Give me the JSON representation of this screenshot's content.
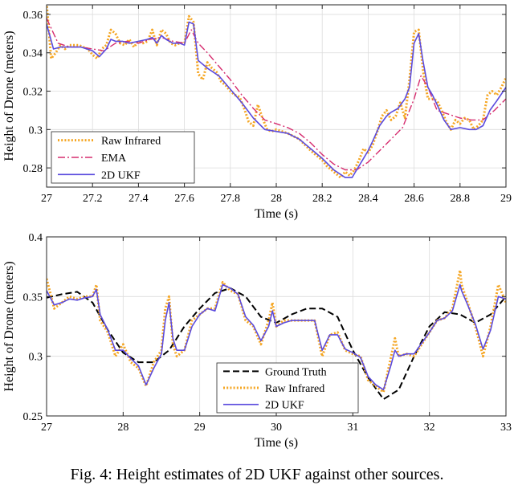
{
  "chart_data": [
    {
      "type": "line",
      "xlabel": "Time (s)",
      "ylabel": "Height of Drone (meters)",
      "xlim": [
        27,
        29
      ],
      "ylim": [
        0.27,
        0.365
      ],
      "xticks": [
        27,
        27.2,
        27.4,
        27.6,
        27.8,
        28,
        28.2,
        28.4,
        28.6,
        28.8,
        29
      ],
      "xtick_labels": [
        "27",
        "27.2",
        "27.4",
        "27.6",
        "27.8",
        "28",
        "28.2",
        "28.4",
        "28.6",
        "28.8",
        "29"
      ],
      "yticks": [
        0.28,
        0.3,
        0.32,
        0.34,
        0.36
      ],
      "ytick_labels": [
        "0.28",
        "0.3",
        "0.32",
        "0.34",
        "0.36"
      ],
      "grid": true,
      "legend_position": "bottom-left",
      "series": [
        {
          "name": "Raw Infrared",
          "color": "#F5A623",
          "style": "dotted",
          "x": [
            27.0,
            27.02,
            27.04,
            27.06,
            27.08,
            27.1,
            27.12,
            27.14,
            27.16,
            27.18,
            27.2,
            27.22,
            27.24,
            27.26,
            27.28,
            27.3,
            27.32,
            27.34,
            27.36,
            27.38,
            27.4,
            27.42,
            27.44,
            27.46,
            27.48,
            27.5,
            27.52,
            27.54,
            27.56,
            27.58,
            27.6,
            27.62,
            27.64,
            27.66,
            27.68,
            27.7,
            27.72,
            27.74,
            27.76,
            27.78,
            27.8,
            27.82,
            27.84,
            27.86,
            27.88,
            27.9,
            27.92,
            27.94,
            27.96,
            27.98,
            28.0,
            28.05,
            28.1,
            28.15,
            28.2,
            28.22,
            28.24,
            28.26,
            28.28,
            28.3,
            28.32,
            28.34,
            28.36,
            28.38,
            28.4,
            28.42,
            28.44,
            28.46,
            28.48,
            28.5,
            28.52,
            28.54,
            28.56,
            28.58,
            28.6,
            28.62,
            28.64,
            28.66,
            28.68,
            28.7,
            28.72,
            28.74,
            28.76,
            28.78,
            28.8,
            28.82,
            28.84,
            28.86,
            28.88,
            28.9,
            28.92,
            28.94,
            28.96,
            28.98,
            29.0
          ],
          "y": [
            0.366,
            0.337,
            0.34,
            0.344,
            0.342,
            0.344,
            0.344,
            0.344,
            0.343,
            0.342,
            0.339,
            0.337,
            0.342,
            0.344,
            0.352,
            0.35,
            0.345,
            0.344,
            0.347,
            0.343,
            0.346,
            0.345,
            0.346,
            0.352,
            0.344,
            0.352,
            0.35,
            0.345,
            0.344,
            0.345,
            0.345,
            0.359,
            0.356,
            0.329,
            0.326,
            0.335,
            0.332,
            0.33,
            0.325,
            0.323,
            0.32,
            0.318,
            0.317,
            0.311,
            0.304,
            0.302,
            0.313,
            0.306,
            0.3,
            0.299,
            0.3,
            0.298,
            0.295,
            0.289,
            0.284,
            0.281,
            0.279,
            0.277,
            0.275,
            0.278,
            0.276,
            0.279,
            0.284,
            0.29,
            0.288,
            0.292,
            0.299,
            0.307,
            0.31,
            0.305,
            0.307,
            0.314,
            0.306,
            0.326,
            0.351,
            0.352,
            0.33,
            0.316,
            0.316,
            0.315,
            0.31,
            0.304,
            0.3,
            0.305,
            0.303,
            0.306,
            0.305,
            0.3,
            0.302,
            0.305,
            0.318,
            0.32,
            0.318,
            0.322,
            0.327
          ]
        },
        {
          "name": "EMA",
          "color": "#D62D6F",
          "style": "dashdot",
          "x": [
            27.0,
            27.05,
            27.1,
            27.15,
            27.2,
            27.25,
            27.3,
            27.35,
            27.4,
            27.45,
            27.5,
            27.55,
            27.6,
            27.63,
            27.66,
            27.7,
            27.75,
            27.8,
            27.85,
            27.9,
            27.95,
            28.0,
            28.05,
            28.1,
            28.15,
            28.2,
            28.25,
            28.3,
            28.35,
            28.4,
            28.45,
            28.5,
            28.55,
            28.6,
            28.63,
            28.66,
            28.7,
            28.75,
            28.8,
            28.85,
            28.9,
            28.95,
            29.0
          ],
          "y": [
            0.358,
            0.345,
            0.343,
            0.343,
            0.342,
            0.341,
            0.345,
            0.346,
            0.345,
            0.347,
            0.348,
            0.346,
            0.345,
            0.352,
            0.345,
            0.34,
            0.333,
            0.326,
            0.318,
            0.311,
            0.305,
            0.303,
            0.301,
            0.298,
            0.293,
            0.287,
            0.282,
            0.279,
            0.279,
            0.283,
            0.289,
            0.295,
            0.301,
            0.316,
            0.328,
            0.322,
            0.31,
            0.308,
            0.306,
            0.305,
            0.305,
            0.31,
            0.316
          ]
        },
        {
          "name": "2D UKF",
          "color": "#5B4BDE",
          "style": "solid",
          "x": [
            27.0,
            27.03,
            27.06,
            27.1,
            27.15,
            27.2,
            27.23,
            27.26,
            27.28,
            27.3,
            27.33,
            27.36,
            27.4,
            27.44,
            27.46,
            27.48,
            27.5,
            27.52,
            27.55,
            27.58,
            27.6,
            27.62,
            27.64,
            27.66,
            27.7,
            27.75,
            27.8,
            27.85,
            27.9,
            27.95,
            28.0,
            28.05,
            28.1,
            28.15,
            28.2,
            28.25,
            28.3,
            28.33,
            28.35,
            28.38,
            28.4,
            28.42,
            28.45,
            28.48,
            28.5,
            28.53,
            28.56,
            28.58,
            28.6,
            28.62,
            28.64,
            28.66,
            28.68,
            28.7,
            28.73,
            28.76,
            28.8,
            28.84,
            28.87,
            28.9,
            28.93,
            28.96,
            29.0
          ],
          "y": [
            0.355,
            0.342,
            0.343,
            0.343,
            0.343,
            0.341,
            0.338,
            0.342,
            0.347,
            0.346,
            0.346,
            0.345,
            0.346,
            0.347,
            0.348,
            0.345,
            0.349,
            0.347,
            0.345,
            0.345,
            0.344,
            0.356,
            0.355,
            0.336,
            0.332,
            0.328,
            0.321,
            0.314,
            0.306,
            0.3,
            0.299,
            0.298,
            0.295,
            0.29,
            0.285,
            0.279,
            0.275,
            0.275,
            0.279,
            0.285,
            0.289,
            0.294,
            0.302,
            0.307,
            0.309,
            0.311,
            0.316,
            0.322,
            0.345,
            0.35,
            0.335,
            0.322,
            0.318,
            0.313,
            0.305,
            0.3,
            0.301,
            0.3,
            0.3,
            0.302,
            0.31,
            0.315,
            0.322
          ]
        }
      ]
    },
    {
      "type": "line",
      "xlabel": "Time (s)",
      "ylabel": "Height of Drone (meters)",
      "xlim": [
        27,
        33
      ],
      "ylim": [
        0.25,
        0.4
      ],
      "xticks": [
        27,
        28,
        29,
        30,
        31,
        32,
        33
      ],
      "xtick_labels": [
        "27",
        "28",
        "29",
        "30",
        "31",
        "32",
        "33"
      ],
      "yticks": [
        0.25,
        0.3,
        0.35,
        0.4
      ],
      "ytick_labels": [
        "0.25",
        "0.3",
        "0.35",
        "0.4"
      ],
      "grid": true,
      "legend_position": "bottom-center",
      "series": [
        {
          "name": "Ground Truth",
          "color": "#000000",
          "style": "dashed",
          "x": [
            27.0,
            27.2,
            27.4,
            27.6,
            27.8,
            28.0,
            28.2,
            28.4,
            28.6,
            28.8,
            29.0,
            29.2,
            29.4,
            29.6,
            29.8,
            30.0,
            30.2,
            30.4,
            30.6,
            30.8,
            31.0,
            31.2,
            31.4,
            31.6,
            31.8,
            32.0,
            32.2,
            32.4,
            32.6,
            32.8,
            33.0
          ],
          "y": [
            0.349,
            0.352,
            0.354,
            0.345,
            0.322,
            0.303,
            0.295,
            0.295,
            0.305,
            0.325,
            0.34,
            0.353,
            0.357,
            0.35,
            0.333,
            0.328,
            0.335,
            0.34,
            0.34,
            0.333,
            0.305,
            0.282,
            0.264,
            0.272,
            0.3,
            0.325,
            0.337,
            0.335,
            0.328,
            0.335,
            0.35
          ]
        },
        {
          "name": "Raw Infrared",
          "color": "#F5A623",
          "style": "dotted",
          "x": [
            27.0,
            27.1,
            27.2,
            27.3,
            27.4,
            27.5,
            27.6,
            27.65,
            27.7,
            27.8,
            27.9,
            28.0,
            28.1,
            28.2,
            28.3,
            28.4,
            28.5,
            28.55,
            28.6,
            28.65,
            28.7,
            28.8,
            28.9,
            29.0,
            29.1,
            29.2,
            29.3,
            29.4,
            29.5,
            29.6,
            29.7,
            29.8,
            29.9,
            29.95,
            30.0,
            30.1,
            30.2,
            30.3,
            30.4,
            30.5,
            30.6,
            30.7,
            30.8,
            30.9,
            31.0,
            31.1,
            31.2,
            31.3,
            31.4,
            31.5,
            31.55,
            31.6,
            31.7,
            31.8,
            31.9,
            32.0,
            32.1,
            32.2,
            32.3,
            32.4,
            32.42,
            32.5,
            32.6,
            32.7,
            32.8,
            32.9,
            33.0
          ],
          "y": [
            0.365,
            0.34,
            0.345,
            0.35,
            0.348,
            0.35,
            0.35,
            0.36,
            0.33,
            0.32,
            0.3,
            0.31,
            0.295,
            0.29,
            0.275,
            0.295,
            0.305,
            0.34,
            0.35,
            0.31,
            0.3,
            0.305,
            0.33,
            0.335,
            0.34,
            0.34,
            0.362,
            0.355,
            0.352,
            0.33,
            0.325,
            0.31,
            0.33,
            0.345,
            0.325,
            0.33,
            0.33,
            0.33,
            0.33,
            0.33,
            0.3,
            0.318,
            0.32,
            0.305,
            0.302,
            0.3,
            0.28,
            0.275,
            0.27,
            0.3,
            0.315,
            0.3,
            0.302,
            0.3,
            0.31,
            0.32,
            0.33,
            0.332,
            0.34,
            0.372,
            0.36,
            0.345,
            0.325,
            0.3,
            0.325,
            0.36,
            0.345
          ]
        },
        {
          "name": "2D UKF",
          "color": "#5B4BDE",
          "style": "solid",
          "x": [
            27.0,
            27.1,
            27.2,
            27.3,
            27.4,
            27.5,
            27.6,
            27.65,
            27.7,
            27.8,
            27.9,
            28.0,
            28.1,
            28.2,
            28.3,
            28.4,
            28.5,
            28.55,
            28.6,
            28.65,
            28.7,
            28.8,
            28.9,
            29.0,
            29.1,
            29.2,
            29.3,
            29.4,
            29.5,
            29.6,
            29.7,
            29.8,
            29.9,
            29.95,
            30.0,
            30.1,
            30.2,
            30.3,
            30.4,
            30.5,
            30.6,
            30.7,
            30.8,
            30.9,
            31.0,
            31.1,
            31.2,
            31.3,
            31.4,
            31.5,
            31.55,
            31.6,
            31.7,
            31.8,
            31.9,
            32.0,
            32.1,
            32.2,
            32.3,
            32.4,
            32.42,
            32.5,
            32.6,
            32.7,
            32.8,
            32.9,
            33.0
          ],
          "y": [
            0.355,
            0.343,
            0.345,
            0.348,
            0.347,
            0.349,
            0.35,
            0.356,
            0.335,
            0.322,
            0.305,
            0.305,
            0.298,
            0.292,
            0.276,
            0.29,
            0.302,
            0.33,
            0.345,
            0.315,
            0.305,
            0.305,
            0.325,
            0.335,
            0.34,
            0.338,
            0.36,
            0.357,
            0.352,
            0.333,
            0.326,
            0.313,
            0.325,
            0.338,
            0.325,
            0.328,
            0.33,
            0.33,
            0.33,
            0.33,
            0.305,
            0.318,
            0.318,
            0.306,
            0.303,
            0.299,
            0.283,
            0.276,
            0.272,
            0.293,
            0.305,
            0.3,
            0.302,
            0.302,
            0.311,
            0.32,
            0.33,
            0.332,
            0.338,
            0.36,
            0.355,
            0.343,
            0.327,
            0.306,
            0.322,
            0.35,
            0.348
          ]
        }
      ]
    }
  ],
  "caption": "Fig. 4: Height estimates of 2D UKF against other sources."
}
